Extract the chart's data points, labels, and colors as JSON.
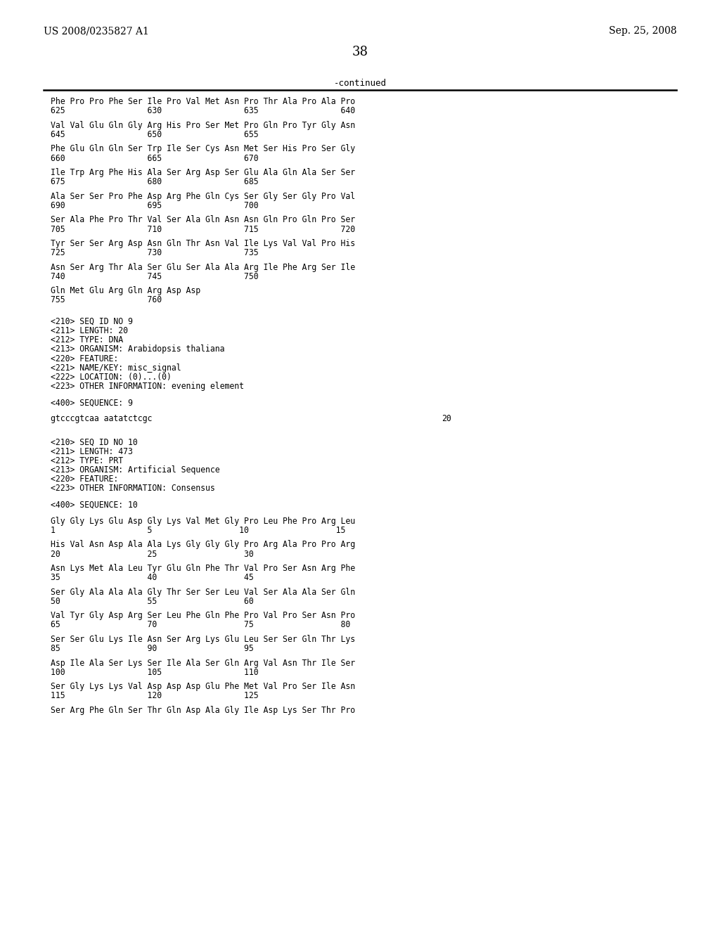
{
  "header_left": "US 2008/0235827 A1",
  "header_right": "Sep. 25, 2008",
  "page_number": "38",
  "continued_label": "-continued",
  "background_color": "#ffffff",
  "text_color": "#000000",
  "lines": [
    {
      "type": "seq",
      "text": "Phe Pro Pro Phe Ser Ile Pro Val Met Asn Pro Thr Ala Pro Ala Pro",
      "nums": "625                 630                 635                 640"
    },
    {
      "type": "seq",
      "text": "Val Val Glu Gln Gly Arg His Pro Ser Met Pro Gln Pro Tyr Gly Asn",
      "nums": "645                 650                 655"
    },
    {
      "type": "seq",
      "text": "Phe Glu Gln Gln Ser Trp Ile Ser Cys Asn Met Ser His Pro Ser Gly",
      "nums": "660                 665                 670"
    },
    {
      "type": "seq",
      "text": "Ile Trp Arg Phe His Ala Ser Arg Asp Ser Glu Ala Gln Ala Ser Ser",
      "nums": "675                 680                 685"
    },
    {
      "type": "seq",
      "text": "Ala Ser Ser Pro Phe Asp Arg Phe Gln Cys Ser Gly Ser Gly Pro Val",
      "nums": "690                 695                 700"
    },
    {
      "type": "seq",
      "text": "Ser Ala Phe Pro Thr Val Ser Ala Gln Asn Asn Gln Pro Gln Pro Ser",
      "nums": "705                 710                 715                 720"
    },
    {
      "type": "seq",
      "text": "Tyr Ser Ser Arg Asp Asn Gln Thr Asn Val Ile Lys Val Val Pro His",
      "nums": "725                 730                 735"
    },
    {
      "type": "seq",
      "text": "Asn Ser Arg Thr Ala Ser Glu Ser Ala Ala Arg Ile Phe Arg Ser Ile",
      "nums": "740                 745                 750"
    },
    {
      "type": "seq",
      "text": "Gln Met Glu Arg Gln Arg Asp Asp",
      "nums": "755                 760"
    },
    {
      "type": "blank"
    },
    {
      "type": "meta",
      "text": "<210> SEQ ID NO 9"
    },
    {
      "type": "meta",
      "text": "<211> LENGTH: 20"
    },
    {
      "type": "meta",
      "text": "<212> TYPE: DNA"
    },
    {
      "type": "meta",
      "text": "<213> ORGANISM: Arabidopsis thaliana"
    },
    {
      "type": "meta",
      "text": "<220> FEATURE:"
    },
    {
      "type": "meta",
      "text": "<221> NAME/KEY: misc_signal"
    },
    {
      "type": "meta",
      "text": "<222> LOCATION: (0)...(0)"
    },
    {
      "type": "meta",
      "text": "<223> OTHER INFORMATION: evening element"
    },
    {
      "type": "blank"
    },
    {
      "type": "meta",
      "text": "<400> SEQUENCE: 9"
    },
    {
      "type": "blank"
    },
    {
      "type": "dna",
      "text": "gtcccgtcaa aatatctcgc",
      "num": "20"
    },
    {
      "type": "blank"
    },
    {
      "type": "blank"
    },
    {
      "type": "meta",
      "text": "<210> SEQ ID NO 10"
    },
    {
      "type": "meta",
      "text": "<211> LENGTH: 473"
    },
    {
      "type": "meta",
      "text": "<212> TYPE: PRT"
    },
    {
      "type": "meta",
      "text": "<213> ORGANISM: Artificial Sequence"
    },
    {
      "type": "meta",
      "text": "<220> FEATURE:"
    },
    {
      "type": "meta",
      "text": "<223> OTHER INFORMATION: Consensus"
    },
    {
      "type": "blank"
    },
    {
      "type": "meta",
      "text": "<400> SEQUENCE: 10"
    },
    {
      "type": "blank"
    },
    {
      "type": "seq",
      "text": "Gly Gly Lys Glu Asp Gly Lys Val Met Gly Pro Leu Phe Pro Arg Leu",
      "nums": "1                   5                  10                  15"
    },
    {
      "type": "seq",
      "text": "His Val Asn Asp Ala Ala Lys Gly Gly Gly Pro Arg Ala Pro Pro Arg",
      "nums": "20                  25                  30"
    },
    {
      "type": "seq",
      "text": "Asn Lys Met Ala Leu Tyr Glu Gln Phe Thr Val Pro Ser Asn Arg Phe",
      "nums": "35                  40                  45"
    },
    {
      "type": "seq",
      "text": "Ser Gly Ala Ala Ala Gly Thr Ser Ser Leu Val Ser Ala Ala Ser Gln",
      "nums": "50                  55                  60"
    },
    {
      "type": "seq",
      "text": "Val Tyr Gly Asp Arg Ser Leu Phe Gln Phe Pro Val Pro Ser Asn Pro",
      "nums": "65                  70                  75                  80"
    },
    {
      "type": "seq",
      "text": "Ser Ser Glu Lys Ile Asn Ser Arg Lys Glu Leu Ser Ser Gln Thr Lys",
      "nums": "85                  90                  95"
    },
    {
      "type": "seq",
      "text": "Asp Ile Ala Ser Lys Ser Ile Ala Ser Gln Arg Val Asn Thr Ile Ser",
      "nums": "100                 105                 110"
    },
    {
      "type": "seq",
      "text": "Ser Gly Lys Lys Val Asp Asp Asp Glu Phe Met Val Pro Ser Ile Asn",
      "nums": "115                 120                 125"
    },
    {
      "type": "seq",
      "text": "Ser Arg Phe Gln Ser Thr Gln Asp Ala Gly Ile Asp Lys Ser Thr Pro",
      "nums": ""
    }
  ]
}
